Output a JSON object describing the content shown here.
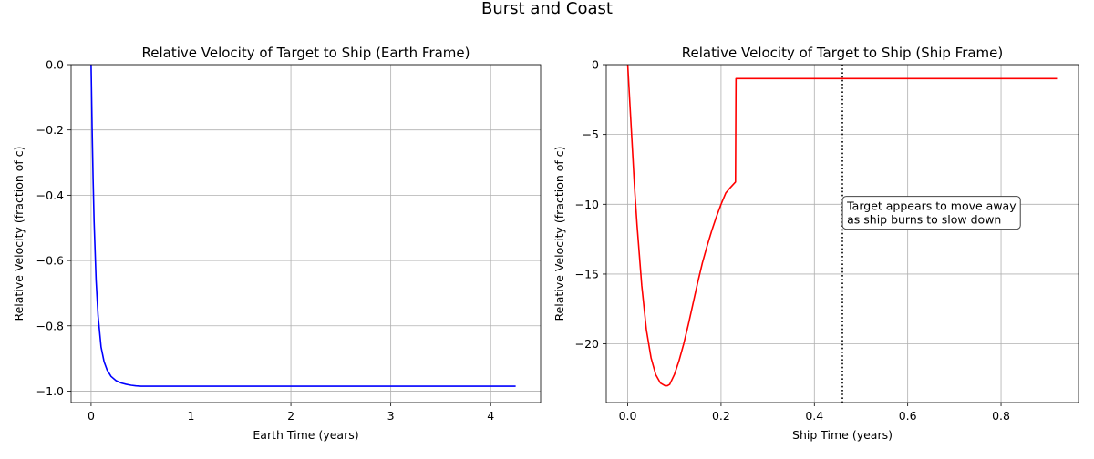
{
  "figure": {
    "title": "Burst and Coast"
  },
  "chart_data": [
    {
      "type": "line",
      "title": "Relative Velocity of Target to Ship (Earth Frame)",
      "xlabel": "Earth Time (years)",
      "ylabel": "Relative Velocity (fraction of c)",
      "xlim": [
        -0.2,
        4.5
      ],
      "ylim": [
        -1.035,
        0.0
      ],
      "xticks": [
        0,
        1,
        2,
        3,
        4
      ],
      "xtick_labels": [
        "0",
        "1",
        "2",
        "3",
        "4"
      ],
      "yticks": [
        0.0,
        -0.2,
        -0.4,
        -0.6,
        -0.8,
        -1.0
      ],
      "ytick_labels": [
        "0.0",
        "−0.2",
        "−0.4",
        "−0.6",
        "−0.8",
        "−1.0"
      ],
      "grid": true,
      "series": [
        {
          "color": "#0000ff",
          "x": [
            0.0,
            0.01,
            0.02,
            0.03,
            0.05,
            0.07,
            0.1,
            0.13,
            0.16,
            0.2,
            0.25,
            0.3,
            0.35,
            0.4,
            0.45,
            0.5,
            0.55,
            1.0,
            2.0,
            3.0,
            4.0,
            4.25
          ],
          "y": [
            0.0,
            -0.19,
            -0.35,
            -0.48,
            -0.66,
            -0.77,
            -0.865,
            -0.91,
            -0.935,
            -0.955,
            -0.968,
            -0.975,
            -0.979,
            -0.982,
            -0.984,
            -0.985,
            -0.985,
            -0.985,
            -0.985,
            -0.985,
            -0.985,
            -0.985
          ]
        }
      ]
    },
    {
      "type": "line",
      "title": "Relative Velocity of Target to Ship (Ship Frame)",
      "xlabel": "Ship Time (years)",
      "ylabel": "Relative Velocity (fraction of c)",
      "xlim": [
        -0.046,
        0.966
      ],
      "ylim": [
        -24.2,
        0.0
      ],
      "xticks": [
        0.0,
        0.2,
        0.4,
        0.6,
        0.8
      ],
      "xtick_labels": [
        "0.0",
        "0.2",
        "0.4",
        "0.6",
        "0.8"
      ],
      "yticks": [
        0,
        -5,
        -10,
        -15,
        -20
      ],
      "ytick_labels": [
        "0",
        "−5",
        "−10",
        "−15",
        "−20"
      ],
      "grid": true,
      "series": [
        {
          "color": "#ff0000",
          "x": [
            0.0,
            0.005,
            0.01,
            0.015,
            0.02,
            0.03,
            0.04,
            0.05,
            0.06,
            0.07,
            0.08,
            0.085,
            0.09,
            0.1,
            0.11,
            0.12,
            0.13,
            0.14,
            0.15,
            0.16,
            0.17,
            0.18,
            0.19,
            0.2,
            0.21,
            0.22,
            0.231,
            0.232,
            0.25,
            0.4,
            0.6,
            0.8,
            0.92
          ],
          "y": [
            0.0,
            -3.0,
            -6.0,
            -9.0,
            -11.5,
            -15.8,
            -19.0,
            -21.0,
            -22.2,
            -22.8,
            -23.0,
            -23.0,
            -22.9,
            -22.2,
            -21.2,
            -20.0,
            -18.6,
            -17.1,
            -15.6,
            -14.2,
            -13.0,
            -11.9,
            -10.9,
            -10.0,
            -9.2,
            -8.8,
            -8.4,
            -1.0,
            -1.0,
            -1.0,
            -1.0,
            -1.0,
            -1.0
          ]
        }
      ],
      "vline": {
        "x": 0.46,
        "style": "dotted",
        "color": "#000000"
      },
      "annotation": {
        "x": 0.47,
        "y": -10.8,
        "lines": [
          "Target appears to move away",
          "as ship burns to slow down"
        ]
      }
    }
  ]
}
